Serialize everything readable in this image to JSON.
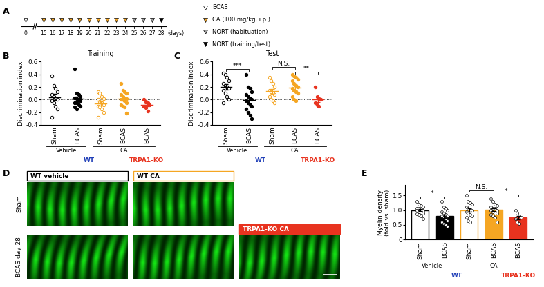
{
  "timeline": {
    "panel": "A",
    "unit_label": "(days)",
    "day_ticks": [
      0,
      15,
      16,
      17,
      18,
      19,
      20,
      21,
      22,
      23,
      24,
      25,
      26,
      27,
      28
    ],
    "events": [
      {
        "label": "BCAS",
        "color": "#ffffff",
        "days": [
          0
        ]
      },
      {
        "label": "CA (100 mg/kg, i.p.)",
        "color": "#f5a623",
        "days": [
          15,
          16,
          17,
          18,
          19,
          20,
          21,
          22,
          23,
          24
        ]
      },
      {
        "label": "NORT (habituation)",
        "color": "#9e9e9e",
        "days": [
          25,
          26,
          27
        ]
      },
      {
        "label": "NORT (training/test)",
        "color": "#000000",
        "days": [
          28
        ]
      }
    ]
  },
  "chart_data": [
    {
      "type": "scatter",
      "panel": "B",
      "title": "Training",
      "y_label": "Discrimination index",
      "categories": [
        "Sham",
        "BCAS",
        "Sham",
        "BCAS",
        "BCAS"
      ],
      "ylim": [
        -0.4,
        0.6
      ],
      "yticks": [
        -0.4,
        -0.2,
        {
          "value": 0,
          "label": "0.0"
        },
        0.2,
        0.4,
        0.6
      ],
      "reference_line": 0,
      "groups": [
        {
          "color": "#000000",
          "marker": "open",
          "mean": 0.04,
          "sem": 0.05,
          "points": [
            0.38,
            0.22,
            0.18,
            0.12,
            0.08,
            0.05,
            0.03,
            0.0,
            -0.02,
            -0.05,
            -0.1,
            -0.15,
            -0.28
          ]
        },
        {
          "color": "#000000",
          "marker": "filled",
          "mean": 0.01,
          "sem": 0.04,
          "points": [
            0.48,
            0.1,
            0.08,
            0.05,
            0.03,
            0.02,
            0.0,
            -0.02,
            -0.05,
            -0.05,
            -0.08,
            -0.1,
            -0.12,
            -0.15
          ]
        },
        {
          "color": "#f5a623",
          "marker": "open",
          "mean": -0.06,
          "sem": 0.03,
          "points": [
            0.12,
            0.1,
            0.05,
            0.02,
            0.0,
            -0.03,
            -0.05,
            -0.08,
            -0.1,
            -0.12,
            -0.15,
            -0.2,
            -0.28
          ]
        },
        {
          "color": "#f5a623",
          "marker": "filled",
          "mean": 0.01,
          "sem": 0.03,
          "points": [
            0.25,
            0.15,
            0.12,
            0.1,
            0.08,
            0.05,
            0.03,
            0.02,
            0.0,
            0.0,
            -0.02,
            -0.05,
            -0.08,
            -0.1,
            -0.12,
            -0.22
          ]
        },
        {
          "color": "#e8331f",
          "marker": "filled",
          "mean": -0.08,
          "sem": 0.02,
          "points": [
            0.0,
            -0.03,
            -0.05,
            -0.08,
            -0.1,
            -0.13,
            -0.18
          ]
        }
      ],
      "significance": [],
      "treatment_labels": [
        {
          "label": "Vehicle",
          "from": 0,
          "to": 1
        },
        {
          "label": "CA",
          "from": 2,
          "to": 4
        }
      ],
      "genotype_labels": [
        {
          "label": "WT",
          "from": 0,
          "to": 3,
          "color": "#2140b8"
        },
        {
          "label": "TRPA1-KO",
          "from": 4,
          "to": 4,
          "color": "#e8331f"
        }
      ]
    },
    {
      "type": "scatter",
      "panel": "C",
      "title": "Test",
      "y_label": "Discrimination index",
      "categories": [
        "Sham",
        "BCAS",
        "Sham",
        "BCAS",
        "BCAS"
      ],
      "ylim": [
        -0.4,
        0.6
      ],
      "yticks": [
        -0.4,
        -0.2,
        {
          "value": 0,
          "label": "0.0"
        },
        0.2,
        0.4,
        0.6
      ],
      "reference_line": 0,
      "groups": [
        {
          "color": "#000000",
          "marker": "open",
          "mean": 0.2,
          "sem": 0.04,
          "points": [
            0.42,
            0.4,
            0.35,
            0.3,
            0.25,
            0.22,
            0.2,
            0.18,
            0.15,
            0.1,
            0.05,
            0.0,
            -0.05
          ]
        },
        {
          "color": "#000000",
          "marker": "filled",
          "mean": -0.01,
          "sem": 0.05,
          "points": [
            0.4,
            0.2,
            0.18,
            0.12,
            0.08,
            0.05,
            0.02,
            0.0,
            -0.02,
            -0.05,
            -0.08,
            -0.1,
            -0.15,
            -0.2,
            -0.25,
            -0.3
          ]
        },
        {
          "color": "#f5a623",
          "marker": "open",
          "mean": 0.13,
          "sem": 0.04,
          "points": [
            0.35,
            0.3,
            0.25,
            0.2,
            0.15,
            0.12,
            0.1,
            0.08,
            0.05,
            0.0,
            -0.02,
            -0.05
          ]
        },
        {
          "color": "#f5a623",
          "marker": "filled",
          "mean": 0.19,
          "sem": 0.04,
          "points": [
            0.4,
            0.38,
            0.35,
            0.32,
            0.3,
            0.25,
            0.22,
            0.2,
            0.18,
            0.15,
            0.12,
            0.1,
            0.05,
            0.0,
            -0.02
          ]
        },
        {
          "color": "#e8331f",
          "marker": "filled",
          "mean": 0.0,
          "sem": 0.04,
          "points": [
            0.2,
            0.05,
            0.02,
            0.0,
            -0.05,
            -0.08,
            -0.1
          ]
        }
      ],
      "significance": [
        {
          "label": "***",
          "from": 0,
          "to": 1,
          "y": 0.48
        },
        {
          "label": "N.S.",
          "from": 2,
          "to": 3,
          "y": 0.52
        },
        {
          "label": "**",
          "from": 3,
          "to": 4,
          "y": 0.44
        }
      ],
      "treatment_labels": [
        {
          "label": "Vehicle",
          "from": 0,
          "to": 1
        },
        {
          "label": "CA",
          "from": 2,
          "to": 4
        }
      ],
      "genotype_labels": [
        {
          "label": "WT",
          "from": 0,
          "to": 3,
          "color": "#2140b8"
        },
        {
          "label": "TRPA1-KO",
          "from": 4,
          "to": 4,
          "color": "#e8331f"
        }
      ]
    },
    {
      "type": "bar",
      "panel": "E",
      "title": null,
      "y_label": "Myelin density\n(fold vs. sham)",
      "categories": [
        "Sham",
        "BCAS",
        "Sham",
        "BCAS",
        "BCAS"
      ],
      "ylim": [
        0,
        1.85
      ],
      "yticks": [
        0,
        0.5,
        {
          "value": 1,
          "label": "1.0"
        },
        1.5
      ],
      "reference_line": null,
      "groups": [
        {
          "color": "#000000",
          "marker": "open",
          "mean": 1.0,
          "sem": 0.04,
          "points": [
            1.3,
            1.2,
            1.15,
            1.1,
            1.05,
            1.05,
            1.0,
            1.0,
            0.98,
            0.95,
            0.92,
            0.9,
            0.88,
            0.85,
            0.8,
            0.7
          ]
        },
        {
          "color": "#000000",
          "marker": "filled",
          "mean": 0.8,
          "sem": 0.06,
          "points": [
            1.3,
            1.1,
            1.05,
            1.0,
            0.95,
            0.9,
            0.85,
            0.8,
            0.8,
            0.75,
            0.7,
            0.65,
            0.6,
            0.55,
            0.5,
            0.45
          ]
        },
        {
          "color": "#f5a623",
          "marker": "open",
          "mean": 1.0,
          "sem": 0.06,
          "points": [
            1.5,
            1.3,
            1.25,
            1.2,
            1.1,
            1.05,
            1.0,
            1.0,
            0.95,
            0.9,
            0.85,
            0.8,
            0.75,
            0.65,
            0.6
          ]
        },
        {
          "color": "#f5a623",
          "marker": "filled",
          "mean": 1.02,
          "sem": 0.05,
          "points": [
            1.4,
            1.3,
            1.2,
            1.15,
            1.1,
            1.05,
            1.05,
            1.0,
            1.0,
            0.95,
            0.9,
            0.9,
            0.85,
            0.8,
            0.75,
            0.6
          ]
        },
        {
          "color": "#e8331f",
          "marker": "filled",
          "mean": 0.75,
          "sem": 0.06,
          "points": [
            1.0,
            0.9,
            0.8,
            0.75,
            0.7,
            0.6,
            0.55
          ]
        }
      ],
      "significance": [
        {
          "label": "*",
          "from": 0,
          "to": 1,
          "y": 1.45
        },
        {
          "label": "N.S.",
          "from": 2,
          "to": 3,
          "y": 1.68
        },
        {
          "label": "*",
          "from": 3,
          "to": 4,
          "y": 1.52
        }
      ],
      "treatment_labels": [
        {
          "label": "Vehicle",
          "from": 0,
          "to": 1
        },
        {
          "label": "CA",
          "from": 2,
          "to": 4
        }
      ],
      "genotype_labels": [
        {
          "label": "WT",
          "from": 0,
          "to": 3,
          "color": "#2140b8"
        },
        {
          "label": "TRPA1-KO",
          "from": 4,
          "to": 4,
          "color": "#e8331f"
        }
      ]
    }
  ],
  "images": {
    "panel": "D",
    "rows": [
      "Sham",
      "BCAS day 28"
    ],
    "columns": [
      {
        "label": "WT vehicle",
        "color": "#000000",
        "style": "outline",
        "present": [
          true,
          true
        ]
      },
      {
        "label": "WT CA",
        "color": "#f5a623",
        "style": "outline",
        "present": [
          true,
          true
        ]
      },
      {
        "label": "TRPA1-KO CA",
        "color": "#e8331f",
        "style": "filled",
        "present": [
          false,
          true
        ]
      }
    ]
  }
}
